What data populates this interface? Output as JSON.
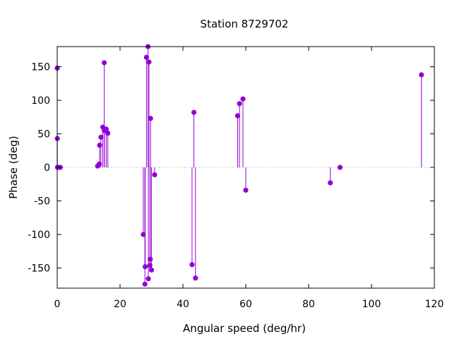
{
  "chart_data": {
    "type": "scatter",
    "style": "impulses-with-points",
    "title": "Station 8729702",
    "xlabel": "Angular speed (deg/hr)",
    "ylabel": "Phase (deg)",
    "xlim": [
      0,
      120
    ],
    "ylim": [
      -180,
      180
    ],
    "x_ticks": [
      0,
      20,
      40,
      60,
      80,
      100,
      120
    ],
    "y_ticks": [
      -150,
      -100,
      -50,
      0,
      50,
      100,
      150
    ],
    "x_tick_labels": [
      "0",
      "20",
      "40",
      "60",
      "80",
      "100",
      "120"
    ],
    "y_tick_labels": [
      "-150",
      "-100",
      "-50",
      "0",
      "50",
      "100",
      "150"
    ],
    "zero_line": "dotted",
    "grid": false,
    "legend": "none",
    "color": "#9400d3",
    "points": [
      {
        "x": 0.0,
        "y": 148
      },
      {
        "x": 0.04,
        "y": 43
      },
      {
        "x": 0.08,
        "y": 0
      },
      {
        "x": 0.5,
        "y": 0
      },
      {
        "x": 1.0,
        "y": 0
      },
      {
        "x": 12.85,
        "y": 2
      },
      {
        "x": 13.4,
        "y": 5
      },
      {
        "x": 13.5,
        "y": 33
      },
      {
        "x": 13.9,
        "y": 45
      },
      {
        "x": 14.5,
        "y": 60
      },
      {
        "x": 14.96,
        "y": 156
      },
      {
        "x": 15.0,
        "y": 55
      },
      {
        "x": 15.6,
        "y": 57
      },
      {
        "x": 16.1,
        "y": 51
      },
      {
        "x": 27.4,
        "y": -100
      },
      {
        "x": 27.9,
        "y": -174
      },
      {
        "x": 28.0,
        "y": -148
      },
      {
        "x": 28.4,
        "y": 164
      },
      {
        "x": 28.9,
        "y": 180
      },
      {
        "x": 29.0,
        "y": -166
      },
      {
        "x": 29.2,
        "y": 157
      },
      {
        "x": 29.5,
        "y": -146
      },
      {
        "x": 29.6,
        "y": -137
      },
      {
        "x": 29.7,
        "y": 73
      },
      {
        "x": 30.0,
        "y": -153
      },
      {
        "x": 31.0,
        "y": -11
      },
      {
        "x": 42.9,
        "y": -145
      },
      {
        "x": 43.5,
        "y": 82
      },
      {
        "x": 44.0,
        "y": -165
      },
      {
        "x": 57.4,
        "y": 77
      },
      {
        "x": 58.0,
        "y": 95
      },
      {
        "x": 59.1,
        "y": 102
      },
      {
        "x": 60.0,
        "y": -34
      },
      {
        "x": 86.9,
        "y": -23
      },
      {
        "x": 90.0,
        "y": 0
      },
      {
        "x": 115.9,
        "y": 138
      }
    ]
  }
}
